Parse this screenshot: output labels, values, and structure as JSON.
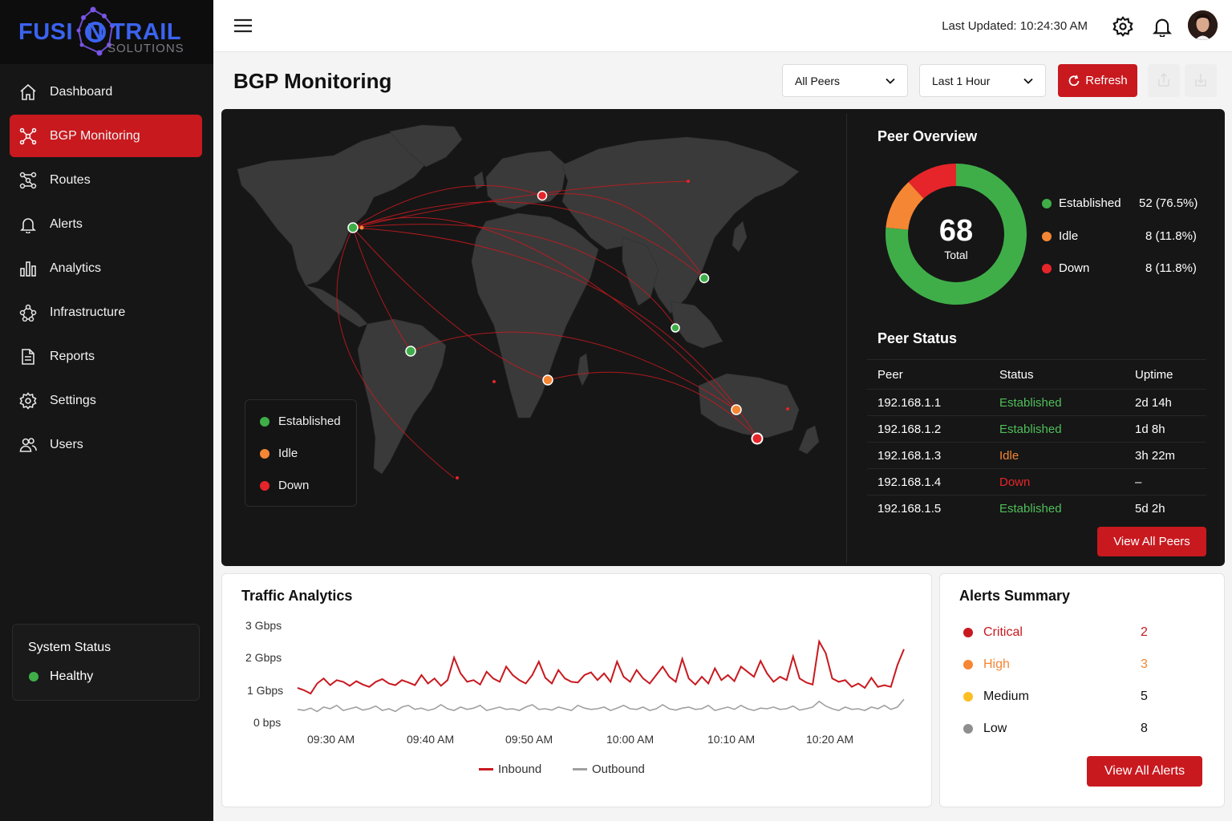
{
  "brand": {
    "logo_main": "FUSI  N TRAIL",
    "logo_sub": "SOLUTIONS"
  },
  "nav": [
    {
      "label": "Dashboard",
      "icon": "home-icon"
    },
    {
      "label": "BGP Monitoring",
      "icon": "network-icon",
      "active": true
    },
    {
      "label": "Routes",
      "icon": "routes-icon"
    },
    {
      "label": "Alerts",
      "icon": "bell-icon"
    },
    {
      "label": "Analytics",
      "icon": "bar-chart-icon"
    },
    {
      "label": "Infrastructure",
      "icon": "infrastructure-icon"
    },
    {
      "label": "Reports",
      "icon": "document-icon"
    },
    {
      "label": "Settings",
      "icon": "gear-icon"
    },
    {
      "label": "Users",
      "icon": "users-icon"
    }
  ],
  "system_status": {
    "title": "System Status",
    "value": "Healthy",
    "color": "#3fae49"
  },
  "topbar": {
    "last_updated": "Last Updated: 10:24:30 AM"
  },
  "page": {
    "title": "BGP Monitoring"
  },
  "filters": {
    "peers": "All Peers",
    "range": "Last 1 Hour",
    "refresh": "Refresh"
  },
  "map_legend": [
    {
      "label": "Established",
      "color": "#3fae49"
    },
    {
      "label": "Idle",
      "color": "#f58634"
    },
    {
      "label": "Down",
      "color": "#e5252a"
    }
  ],
  "peer_overview": {
    "title": "Peer Overview",
    "total": "68",
    "total_label": "Total",
    "items": [
      {
        "label": "Established",
        "value": "52 (76.5%)",
        "count": 52,
        "color": "#3fae49"
      },
      {
        "label": "Idle",
        "value": "8 (11.8%)",
        "count": 8,
        "color": "#f58634"
      },
      {
        "label": "Down",
        "value": "8 (11.8%)",
        "count": 8,
        "color": "#e5252a"
      }
    ]
  },
  "peer_status": {
    "title": "Peer Status",
    "headers": [
      "Peer",
      "Status",
      "Uptime"
    ],
    "rows": [
      {
        "peer": "192.168.1.1",
        "status": "Established",
        "uptime": "2d 14h",
        "color": "#4fbf5a"
      },
      {
        "peer": "192.168.1.2",
        "status": "Established",
        "uptime": "1d 8h",
        "color": "#4fbf5a"
      },
      {
        "peer": "192.168.1.3",
        "status": "Idle",
        "uptime": "3h 22m",
        "color": "#f58634"
      },
      {
        "peer": "192.168.1.4",
        "status": "Down",
        "uptime": "–",
        "color": "#e5252a"
      },
      {
        "peer": "192.168.1.5",
        "status": "Established",
        "uptime": "5d 2h",
        "color": "#4fbf5a"
      }
    ],
    "view_all": "View All Peers"
  },
  "traffic": {
    "title": "Traffic Analytics",
    "view_all": "",
    "chart_data": {
      "type": "line",
      "yticks": [
        "3 Gbps",
        "2 Gbps",
        "1 Gbps",
        "0 bps"
      ],
      "ylim": [
        0,
        3
      ],
      "xticks": [
        "09:30 AM",
        "09:40 AM",
        "09:50 AM",
        "10:00 AM",
        "10:10 AM",
        "10:20 AM"
      ],
      "series": [
        {
          "name": "Inbound",
          "color": "#c8191f",
          "values": [
            1.12,
            1.05,
            0.95,
            1.25,
            1.4,
            1.2,
            1.35,
            1.3,
            1.18,
            1.32,
            1.22,
            1.15,
            1.3,
            1.38,
            1.25,
            1.2,
            1.35,
            1.28,
            1.2,
            1.5,
            1.25,
            1.4,
            1.18,
            1.35,
            2.02,
            1.55,
            1.3,
            1.35,
            1.22,
            1.6,
            1.4,
            1.3,
            1.75,
            1.5,
            1.35,
            1.25,
            1.5,
            1.9,
            1.42,
            1.25,
            1.65,
            1.4,
            1.3,
            1.28,
            1.5,
            1.58,
            1.35,
            1.55,
            1.3,
            1.9,
            1.45,
            1.3,
            1.65,
            1.4,
            1.25,
            1.5,
            1.75,
            1.45,
            1.3,
            1.98,
            1.4,
            1.22,
            1.45,
            1.25,
            1.7,
            1.35,
            1.5,
            1.32,
            1.75,
            1.6,
            1.45,
            1.92,
            1.55,
            1.3,
            1.45,
            1.35,
            2.05,
            1.4,
            1.28,
            1.22,
            2.5,
            2.15,
            1.4,
            1.3,
            1.35,
            1.15,
            1.25,
            1.12,
            1.42,
            1.15,
            1.2,
            1.15,
            1.8,
            2.27
          ]
        },
        {
          "name": "Outbound",
          "color": "#9a9a9a",
          "values": [
            0.48,
            0.45,
            0.52,
            0.42,
            0.55,
            0.5,
            0.6,
            0.45,
            0.5,
            0.55,
            0.46,
            0.5,
            0.58,
            0.45,
            0.5,
            0.42,
            0.55,
            0.6,
            0.48,
            0.52,
            0.45,
            0.5,
            0.62,
            0.5,
            0.45,
            0.55,
            0.48,
            0.52,
            0.6,
            0.45,
            0.5,
            0.55,
            0.48,
            0.5,
            0.45,
            0.55,
            0.62,
            0.48,
            0.5,
            0.46,
            0.55,
            0.5,
            0.45,
            0.6,
            0.52,
            0.48,
            0.5,
            0.55,
            0.45,
            0.52,
            0.6,
            0.5,
            0.48,
            0.55,
            0.45,
            0.5,
            0.62,
            0.5,
            0.46,
            0.52,
            0.55,
            0.48,
            0.5,
            0.6,
            0.45,
            0.5,
            0.55,
            0.48,
            0.6,
            0.5,
            0.45,
            0.52,
            0.5,
            0.55,
            0.48,
            0.5,
            0.58,
            0.46,
            0.5,
            0.55,
            0.72,
            0.58,
            0.5,
            0.45,
            0.55,
            0.48,
            0.5,
            0.45,
            0.55,
            0.5,
            0.6,
            0.48,
            0.55,
            0.78
          ]
        }
      ]
    }
  },
  "alerts": {
    "title": "Alerts Summary",
    "items": [
      {
        "label": "Critical",
        "count": "2",
        "color": "#c8191f",
        "text_color": "#c8191f"
      },
      {
        "label": "High",
        "count": "3",
        "color": "#f58634",
        "text_color": "#f58634"
      },
      {
        "label": "Medium",
        "count": "5",
        "color": "#fbbf24",
        "text_color": "#111111"
      },
      {
        "label": "Low",
        "count": "8",
        "color": "#8f8f8f",
        "text_color": "#111111"
      }
    ],
    "view_all": "View All Alerts"
  }
}
